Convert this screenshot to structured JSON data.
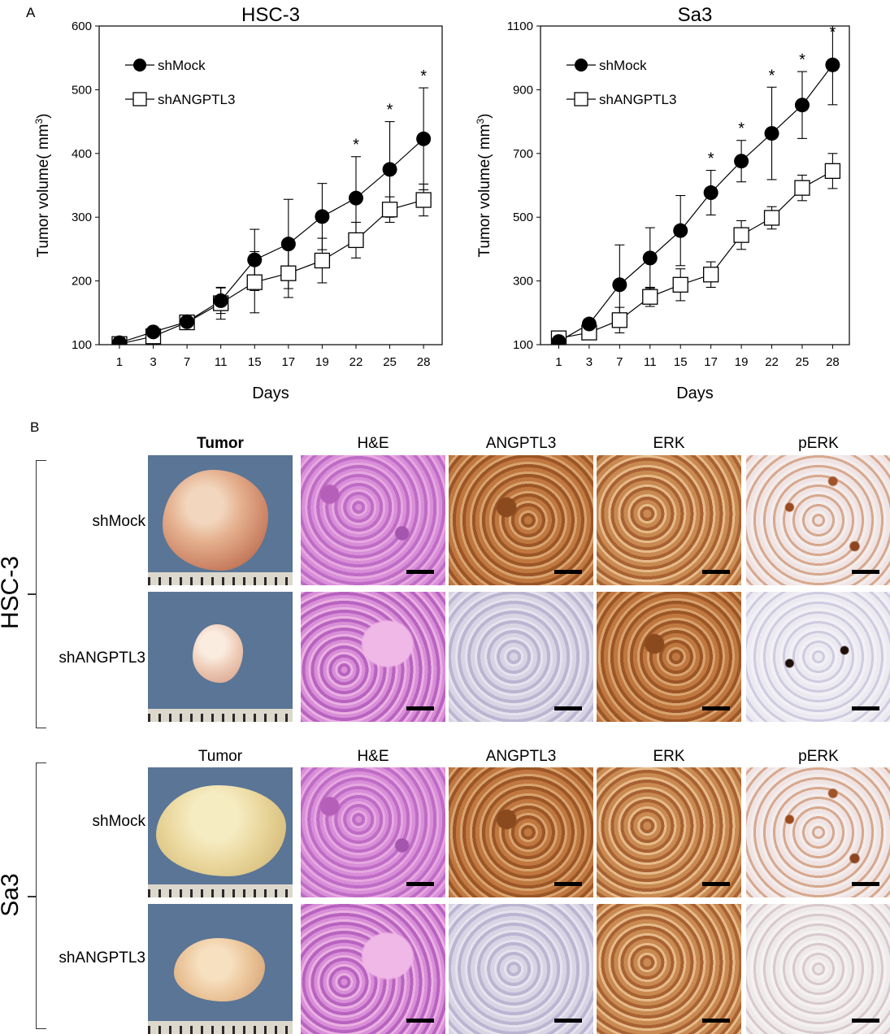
{
  "panel_labels": {
    "a": "A",
    "b": "B"
  },
  "chart_data": [
    {
      "type": "line",
      "title": "HSC-3",
      "xlabel": "Days",
      "ylabel_main": "Tumor volume( mm",
      "ylabel_sup": "3",
      "ylabel_end": ")",
      "x": [
        "1",
        "3",
        "7",
        "11",
        "15",
        "17",
        "19",
        "22",
        "25",
        "28"
      ],
      "ylim": [
        100,
        600
      ],
      "yticks": [
        100,
        200,
        300,
        400,
        500,
        600
      ],
      "series": [
        {
          "name": "shMock",
          "marker": "filled-circle",
          "values": [
            103,
            120,
            136,
            169,
            233,
            258,
            301,
            330,
            375,
            423
          ],
          "errors": [
            5,
            8,
            10,
            20,
            48,
            70,
            52,
            65,
            75,
            80
          ],
          "sig": [
            false,
            false,
            false,
            false,
            false,
            false,
            false,
            true,
            true,
            true
          ]
        },
        {
          "name": "shANGPTL3",
          "marker": "open-square",
          "values": [
            101,
            113,
            135,
            165,
            198,
            212,
            232,
            264,
            312,
            327
          ],
          "errors": [
            5,
            8,
            10,
            25,
            48,
            38,
            35,
            28,
            20,
            25
          ]
        }
      ],
      "sig_mark": "*"
    },
    {
      "type": "line",
      "title": "Sa3",
      "xlabel": "Days",
      "ylabel_main": "Tumor volume( mm",
      "ylabel_sup": "3",
      "ylabel_end": ")",
      "x": [
        "1",
        "3",
        "7",
        "11",
        "15",
        "17",
        "19",
        "22",
        "25",
        "28"
      ],
      "ylim": [
        100,
        1100
      ],
      "yticks": [
        100,
        300,
        500,
        700,
        900,
        1100
      ],
      "series": [
        {
          "name": "shMock",
          "marker": "filled-circle",
          "values": [
            110,
            165,
            288,
            372,
            458,
            577,
            676,
            763,
            852,
            978
          ],
          "errors": [
            8,
            15,
            125,
            95,
            110,
            70,
            65,
            145,
            105,
            125
          ],
          "sig": [
            false,
            false,
            false,
            false,
            false,
            true,
            true,
            true,
            true,
            true
          ]
        },
        {
          "name": "shANGPTL3",
          "marker": "open-square",
          "values": [
            120,
            138,
            177,
            250,
            288,
            320,
            444,
            498,
            592,
            645
          ],
          "errors": [
            8,
            10,
            40,
            30,
            50,
            40,
            45,
            35,
            40,
            55
          ]
        }
      ],
      "sig_mark": "*"
    }
  ],
  "panel_b": {
    "columns": [
      "Tumor",
      "H&E",
      "ANGPTL3",
      "ERK",
      "pERK"
    ],
    "groups": [
      {
        "name": "HSC-3",
        "rows": [
          "shMock",
          "shANGPTL3"
        ]
      },
      {
        "name": "Sa3",
        "rows": [
          "shMock",
          "shANGPTL3"
        ]
      }
    ]
  },
  "colors": {
    "ink": "#000000",
    "he_stain": "#c879c8",
    "dab_stain": "#a8602c",
    "hematoxylin_counterstain": "#c6c1da",
    "photo_background": "#5a7596"
  }
}
